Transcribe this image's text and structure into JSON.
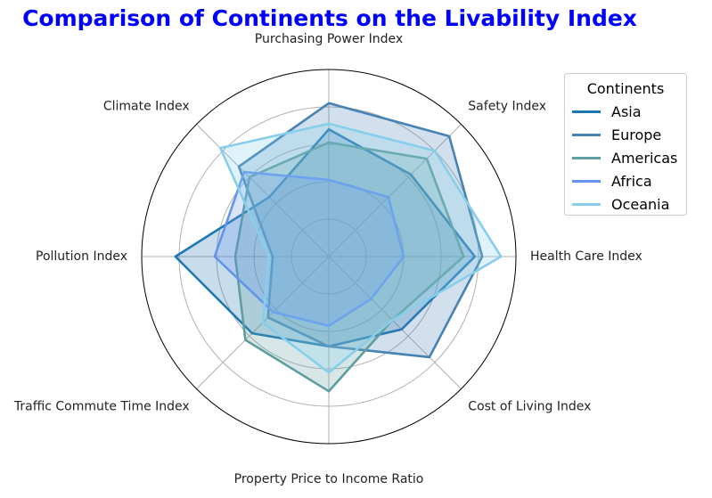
{
  "chart_data": {
    "type": "radar",
    "title": "Comparison of Continents on the Livability Index",
    "axes": [
      "Purchasing Power Index",
      "Safety Index",
      "Health Care Index",
      "Cost of Living Index",
      "Property Price to Income Ratio",
      "Traffic Commute Time Index",
      "Pollution Index",
      "Climate Index"
    ],
    "rlim": [
      0,
      100
    ],
    "grid": true,
    "legend": {
      "title": "Continents",
      "placement": "right"
    },
    "series": [
      {
        "name": "Asia",
        "color": "#1f77b4",
        "values": [
          68,
          62,
          78,
          55,
          48,
          58,
          82,
          45
        ]
      },
      {
        "name": "Europe",
        "color": "#4682b4",
        "values": [
          82,
          91,
          82,
          76,
          48,
          46,
          30,
          68
        ]
      },
      {
        "name": "Americas",
        "color": "#5f9ea0",
        "values": [
          61,
          74,
          72,
          48,
          72,
          63,
          50,
          60
        ]
      },
      {
        "name": "Africa",
        "color": "#6495ed",
        "values": [
          41,
          45,
          40,
          32,
          37,
          42,
          61,
          64
        ]
      },
      {
        "name": "Oceania",
        "color": "#87ceeb",
        "values": [
          71,
          80,
          92,
          48,
          62,
          50,
          32,
          82
        ]
      }
    ]
  }
}
